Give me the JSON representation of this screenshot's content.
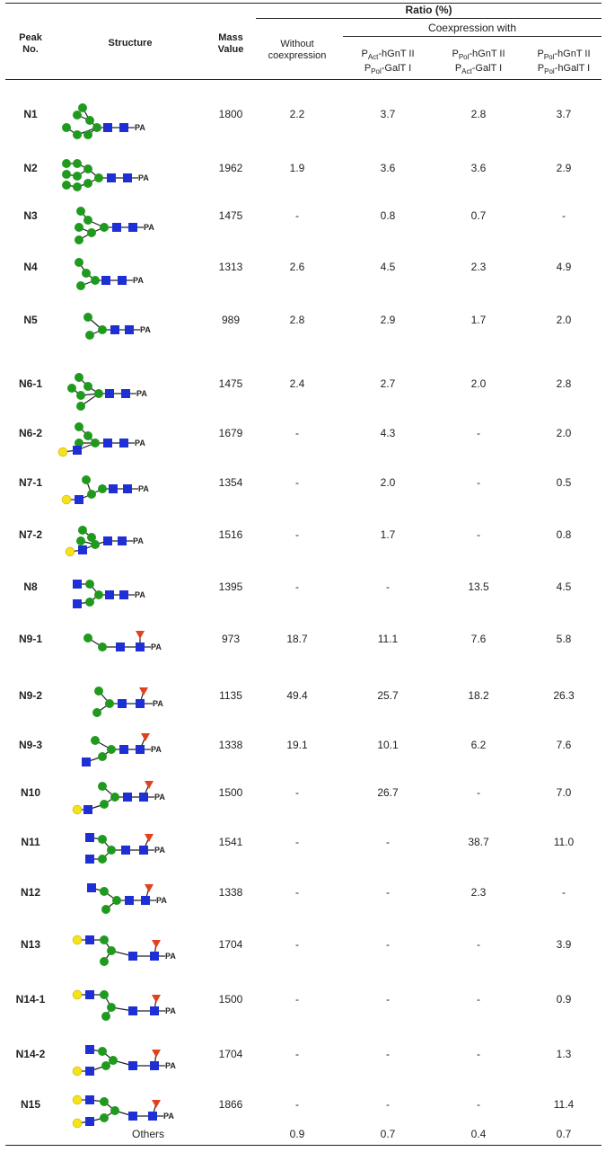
{
  "header": {
    "peak_no": [
      "Peak",
      "No."
    ],
    "structure": "Structure",
    "mass": [
      "Mass",
      "Value"
    ],
    "ratio": "Ratio (%)",
    "without": [
      "Without",
      "coexpression"
    ],
    "coexpression_with": "Coexpression with",
    "col2": {
      "l1_pre": "P",
      "l1_sub": "Act",
      "l1_post": "-hGnT II",
      "l2_pre": "P",
      "l2_sub": "Pol",
      "l2_post": "-GalT I"
    },
    "col3": {
      "l1_pre": "P",
      "l1_sub": "Pol",
      "l1_post": "-hGnT II",
      "l2_pre": "P",
      "l2_sub": "Act",
      "l2_post": "-GalT I"
    },
    "col4": {
      "l1_pre": "P",
      "l1_sub": "Pol",
      "l1_post": "-hGnT II",
      "l2_pre": "P",
      "l2_sub": "Pol",
      "l2_post": "-hGalT I"
    }
  },
  "colors": {
    "mannose": "#1f9a1f",
    "glcnac": "#1f2fd6",
    "galactose": "#f5e21a",
    "fucose": "#e0421f"
  },
  "legend_label": "PA",
  "rows": [
    {
      "peak": "N1",
      "mass": "1800",
      "v": [
        "2.2",
        "3.7",
        "2.8",
        "3.7"
      ]
    },
    {
      "peak": "N2",
      "mass": "1962",
      "v": [
        "1.9",
        "3.6",
        "3.6",
        "2.9"
      ]
    },
    {
      "peak": "N3",
      "mass": "1475",
      "v": [
        "-",
        "0.8",
        "0.7",
        "-"
      ]
    },
    {
      "peak": "N4",
      "mass": "1313",
      "v": [
        "2.6",
        "4.5",
        "2.3",
        "4.9"
      ]
    },
    {
      "peak": "N5",
      "mass": "989",
      "v": [
        "2.8",
        "2.9",
        "1.7",
        "2.0"
      ]
    },
    {
      "peak": "N6-1",
      "mass": "1475",
      "v": [
        "2.4",
        "2.7",
        "2.0",
        "2.8"
      ]
    },
    {
      "peak": "N6-2",
      "mass": "1679",
      "v": [
        "-",
        "4.3",
        "-",
        "2.0"
      ]
    },
    {
      "peak": "N7-1",
      "mass": "1354",
      "v": [
        "-",
        "2.0",
        "-",
        "0.5"
      ]
    },
    {
      "peak": "N7-2",
      "mass": "1516",
      "v": [
        "-",
        "1.7",
        "-",
        "0.8"
      ]
    },
    {
      "peak": "N8",
      "mass": "1395",
      "v": [
        "-",
        "-",
        "13.5",
        "4.5"
      ]
    },
    {
      "peak": "N9-1",
      "mass": "973",
      "v": [
        "18.7",
        "11.1",
        "7.6",
        "5.8"
      ]
    },
    {
      "peak": "N9-2",
      "mass": "1135",
      "v": [
        "49.4",
        "25.7",
        "18.2",
        "26.3"
      ]
    },
    {
      "peak": "N9-3",
      "mass": "1338",
      "v": [
        "19.1",
        "10.1",
        "6.2",
        "7.6"
      ]
    },
    {
      "peak": "N10",
      "mass": "1500",
      "v": [
        "-",
        "26.7",
        "-",
        "7.0"
      ]
    },
    {
      "peak": "N11",
      "mass": "1541",
      "v": [
        "-",
        "-",
        "38.7",
        "11.0"
      ]
    },
    {
      "peak": "N12",
      "mass": "1338",
      "v": [
        "-",
        "-",
        "2.3",
        "-"
      ]
    },
    {
      "peak": "N13",
      "mass": "1704",
      "v": [
        "-",
        "-",
        "-",
        "3.9"
      ]
    },
    {
      "peak": "N14-1",
      "mass": "1500",
      "v": [
        "-",
        "-",
        "-",
        "0.9"
      ]
    },
    {
      "peak": "N14-2",
      "mass": "1704",
      "v": [
        "-",
        "-",
        "-",
        "1.3"
      ]
    },
    {
      "peak": "N15",
      "mass": "1866",
      "v": [
        "-",
        "-",
        "-",
        "11.4"
      ]
    }
  ],
  "others": {
    "label": "Others",
    "v": [
      "0.9",
      "0.7",
      "0.4",
      "0.7"
    ]
  }
}
